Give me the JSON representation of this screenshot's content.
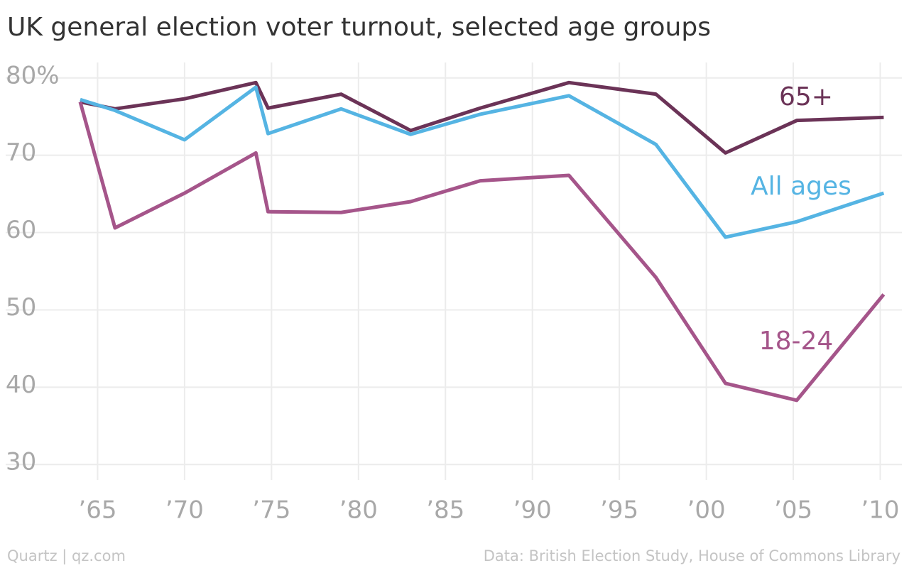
{
  "chart_data": {
    "type": "line",
    "title": "UK general election voter turnout, selected age groups",
    "source": "Data: British Election Study, House of Commons Library",
    "credit": "Quartz | qz.com",
    "x": [
      1964,
      1966,
      1970,
      1974.1,
      1974.8,
      1979,
      1983,
      1987,
      1992.1,
      1997.1,
      2001.1,
      2005.2,
      2010.2
    ],
    "series": [
      {
        "name": "65+",
        "color": "#6b3357",
        "values": [
          76.9,
          76.0,
          77.3,
          79.4,
          76.1,
          77.9,
          73.2,
          76.1,
          79.4,
          77.9,
          70.3,
          74.5,
          74.9
        ]
      },
      {
        "name": "All ages",
        "color": "#55b4e3",
        "values": [
          77.2,
          75.8,
          72.0,
          78.8,
          72.8,
          76.0,
          72.7,
          75.3,
          77.7,
          71.4,
          59.4,
          61.4,
          65.1
        ]
      },
      {
        "name": "18-24",
        "color": "#a5558a",
        "values": [
          76.9,
          60.6,
          65.1,
          70.3,
          62.7,
          62.6,
          64.0,
          66.7,
          67.4,
          54.2,
          40.5,
          38.3,
          52.0
        ]
      }
    ],
    "xlim": [
      1962.9,
      2011
    ],
    "ylim": [
      28,
      82
    ],
    "xticks": [
      {
        "value": 1965,
        "label": "’65"
      },
      {
        "value": 1970,
        "label": "’70"
      },
      {
        "value": 1975,
        "label": "’75"
      },
      {
        "value": 1980,
        "label": "’80"
      },
      {
        "value": 1985,
        "label": "’85"
      },
      {
        "value": 1990,
        "label": "’90"
      },
      {
        "value": 1995,
        "label": "’95"
      },
      {
        "value": 2000,
        "label": "’00"
      },
      {
        "value": 2005,
        "label": "’05"
      },
      {
        "value": 2010,
        "label": "’10"
      }
    ],
    "yticks": [
      30,
      40,
      50,
      60,
      {
        "value": 80,
        "label": "80%"
      },
      70
    ],
    "grid": true
  }
}
